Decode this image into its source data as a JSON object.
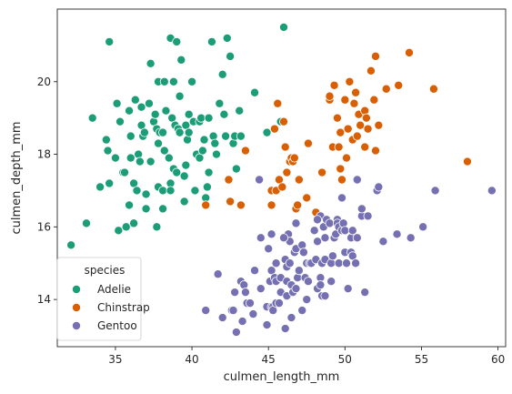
{
  "chart_data": {
    "type": "scatter",
    "xlabel": "culmen_length_mm",
    "ylabel": "culmen_depth_mm",
    "xlim": [
      31.2,
      60.5
    ],
    "ylim": [
      12.7,
      22.0
    ],
    "xticks": [
      35,
      40,
      45,
      50,
      55,
      60
    ],
    "yticks": [
      14,
      16,
      18,
      20
    ],
    "grid": false,
    "legend": {
      "title": "species",
      "placement": "lower-left",
      "entries": [
        "Adelie",
        "Chinstrap",
        "Gentoo"
      ]
    },
    "series": [
      {
        "name": "Adelie",
        "color": "#1b9e77",
        "points": [
          [
            32.1,
            15.5
          ],
          [
            33.1,
            16.1
          ],
          [
            33.5,
            19.0
          ],
          [
            34.0,
            17.1
          ],
          [
            34.4,
            18.4
          ],
          [
            34.5,
            18.1
          ],
          [
            34.6,
            21.1
          ],
          [
            34.6,
            17.2
          ],
          [
            35.0,
            17.9
          ],
          [
            35.1,
            19.4
          ],
          [
            35.2,
            15.9
          ],
          [
            35.3,
            18.9
          ],
          [
            35.5,
            17.5
          ],
          [
            35.6,
            17.5
          ],
          [
            35.7,
            16.0
          ],
          [
            35.9,
            19.2
          ],
          [
            35.9,
            16.6
          ],
          [
            36.0,
            18.5
          ],
          [
            36.0,
            17.9
          ],
          [
            36.2,
            17.2
          ],
          [
            36.2,
            16.1
          ],
          [
            36.3,
            19.5
          ],
          [
            36.4,
            17.0
          ],
          [
            36.5,
            18.0
          ],
          [
            36.6,
            17.8
          ],
          [
            36.7,
            19.3
          ],
          [
            36.7,
            18.8
          ],
          [
            36.8,
            18.5
          ],
          [
            36.9,
            18.6
          ],
          [
            37.0,
            16.9
          ],
          [
            37.0,
            16.5
          ],
          [
            37.2,
            19.4
          ],
          [
            37.3,
            20.5
          ],
          [
            37.3,
            17.8
          ],
          [
            37.5,
            18.9
          ],
          [
            37.6,
            19.1
          ],
          [
            37.7,
            18.7
          ],
          [
            37.7,
            16.0
          ],
          [
            37.8,
            20.0
          ],
          [
            37.8,
            18.3
          ],
          [
            37.8,
            17.1
          ],
          [
            37.9,
            18.6
          ],
          [
            38.1,
            18.6
          ],
          [
            38.1,
            17.0
          ],
          [
            38.1,
            16.5
          ],
          [
            38.2,
            20.0
          ],
          [
            38.2,
            18.1
          ],
          [
            38.3,
            19.2
          ],
          [
            38.5,
            17.9
          ],
          [
            38.6,
            21.2
          ],
          [
            38.6,
            17.2
          ],
          [
            38.7,
            19.0
          ],
          [
            38.8,
            20.0
          ],
          [
            38.8,
            17.6
          ],
          [
            38.9,
            18.8
          ],
          [
            39.0,
            17.5
          ],
          [
            39.0,
            21.1
          ],
          [
            39.1,
            18.7
          ],
          [
            39.2,
            19.6
          ],
          [
            39.2,
            18.6
          ],
          [
            39.3,
            20.6
          ],
          [
            39.5,
            17.4
          ],
          [
            39.5,
            16.7
          ],
          [
            39.6,
            18.8
          ],
          [
            39.6,
            17.7
          ],
          [
            39.7,
            18.4
          ],
          [
            39.8,
            19.1
          ],
          [
            40.0,
            20.0
          ],
          [
            40.1,
            18.9
          ],
          [
            40.2,
            17.0
          ],
          [
            40.3,
            18.0
          ],
          [
            40.5,
            18.9
          ],
          [
            40.5,
            17.9
          ],
          [
            40.6,
            19.0
          ],
          [
            40.7,
            18.1
          ],
          [
            40.8,
            18.4
          ],
          [
            40.9,
            16.8
          ],
          [
            41.0,
            17.1
          ],
          [
            41.1,
            19.0
          ],
          [
            41.1,
            17.5
          ],
          [
            41.3,
            21.1
          ],
          [
            41.4,
            18.5
          ],
          [
            41.5,
            18.3
          ],
          [
            41.6,
            18.0
          ],
          [
            41.8,
            19.4
          ],
          [
            42.0,
            20.2
          ],
          [
            42.1,
            19.1
          ],
          [
            42.2,
            18.5
          ],
          [
            42.3,
            21.2
          ],
          [
            42.5,
            20.7
          ],
          [
            42.7,
            18.3
          ],
          [
            42.8,
            18.5
          ],
          [
            42.9,
            17.6
          ],
          [
            43.1,
            19.2
          ],
          [
            43.2,
            18.5
          ],
          [
            44.1,
            19.7
          ],
          [
            44.9,
            18.6
          ],
          [
            45.8,
            18.9
          ],
          [
            46.0,
            21.5
          ],
          [
            39.8,
            18.6
          ],
          [
            38.6,
            17.0
          ]
        ]
      },
      {
        "name": "Chinstrap",
        "color": "#d95f02",
        "points": [
          [
            40.9,
            16.6
          ],
          [
            42.4,
            17.3
          ],
          [
            42.5,
            16.7
          ],
          [
            43.2,
            16.6
          ],
          [
            43.5,
            18.1
          ],
          [
            45.2,
            16.6
          ],
          [
            45.2,
            17.0
          ],
          [
            45.4,
            18.7
          ],
          [
            45.5,
            17.0
          ],
          [
            45.6,
            19.4
          ],
          [
            45.7,
            17.3
          ],
          [
            45.9,
            17.1
          ],
          [
            46.0,
            18.9
          ],
          [
            46.1,
            18.2
          ],
          [
            46.2,
            17.5
          ],
          [
            46.4,
            17.8
          ],
          [
            46.5,
            17.9
          ],
          [
            46.6,
            17.8
          ],
          [
            46.7,
            17.9
          ],
          [
            46.8,
            16.5
          ],
          [
            46.9,
            16.6
          ],
          [
            47.0,
            17.3
          ],
          [
            47.5,
            16.8
          ],
          [
            47.6,
            18.3
          ],
          [
            48.1,
            16.4
          ],
          [
            48.5,
            17.5
          ],
          [
            49.0,
            19.5
          ],
          [
            49.0,
            19.6
          ],
          [
            49.2,
            18.2
          ],
          [
            49.3,
            19.9
          ],
          [
            49.5,
            19.0
          ],
          [
            49.6,
            18.2
          ],
          [
            49.7,
            18.6
          ],
          [
            49.8,
            17.3
          ],
          [
            50.0,
            19.5
          ],
          [
            50.1,
            17.9
          ],
          [
            50.2,
            18.7
          ],
          [
            50.3,
            20.0
          ],
          [
            50.5,
            18.4
          ],
          [
            50.6,
            19.4
          ],
          [
            50.7,
            19.7
          ],
          [
            50.8,
            18.5
          ],
          [
            50.9,
            19.1
          ],
          [
            51.0,
            18.8
          ],
          [
            51.3,
            19.2
          ],
          [
            51.3,
            18.2
          ],
          [
            51.4,
            19.0
          ],
          [
            51.5,
            18.7
          ],
          [
            51.7,
            20.3
          ],
          [
            51.9,
            19.5
          ],
          [
            52.0,
            18.1
          ],
          [
            52.0,
            20.7
          ],
          [
            52.2,
            18.8
          ],
          [
            52.7,
            19.8
          ],
          [
            53.5,
            19.9
          ],
          [
            54.2,
            20.8
          ],
          [
            55.8,
            19.8
          ],
          [
            58.0,
            17.8
          ],
          [
            49.7,
            17.6
          ]
        ]
      },
      {
        "name": "Gentoo",
        "color": "#7570b3",
        "points": [
          [
            40.9,
            13.7
          ],
          [
            41.7,
            14.7
          ],
          [
            42.0,
            13.5
          ],
          [
            42.6,
            13.7
          ],
          [
            42.7,
            13.7
          ],
          [
            42.8,
            14.2
          ],
          [
            42.9,
            13.1
          ],
          [
            43.2,
            14.5
          ],
          [
            43.3,
            13.4
          ],
          [
            43.4,
            14.4
          ],
          [
            43.5,
            14.2
          ],
          [
            43.6,
            13.9
          ],
          [
            43.8,
            13.9
          ],
          [
            44.0,
            13.6
          ],
          [
            44.4,
            17.3
          ],
          [
            44.5,
            14.3
          ],
          [
            44.5,
            15.7
          ],
          [
            44.9,
            13.8
          ],
          [
            44.9,
            13.3
          ],
          [
            45.0,
            15.4
          ],
          [
            45.1,
            14.5
          ],
          [
            45.2,
            13.8
          ],
          [
            45.2,
            14.8
          ],
          [
            45.2,
            15.8
          ],
          [
            45.3,
            13.8
          ],
          [
            45.3,
            13.7
          ],
          [
            45.4,
            14.6
          ],
          [
            45.5,
            14.5
          ],
          [
            45.5,
            13.9
          ],
          [
            45.5,
            15.0
          ],
          [
            45.7,
            13.9
          ],
          [
            45.8,
            14.6
          ],
          [
            45.8,
            14.2
          ],
          [
            46.1,
            13.2
          ],
          [
            46.1,
            15.1
          ],
          [
            46.2,
            14.1
          ],
          [
            46.2,
            14.5
          ],
          [
            46.2,
            14.9
          ],
          [
            46.3,
            15.8
          ],
          [
            46.4,
            15.6
          ],
          [
            46.4,
            15.0
          ],
          [
            46.5,
            14.4
          ],
          [
            46.5,
            13.5
          ],
          [
            46.6,
            14.2
          ],
          [
            46.7,
            15.3
          ],
          [
            46.8,
            15.4
          ],
          [
            46.8,
            14.3
          ],
          [
            46.8,
            16.1
          ],
          [
            46.9,
            14.6
          ],
          [
            47.2,
            13.7
          ],
          [
            47.2,
            15.5
          ],
          [
            47.3,
            15.3
          ],
          [
            47.4,
            14.6
          ],
          [
            47.5,
            14.0
          ],
          [
            47.5,
            15.0
          ],
          [
            47.6,
            14.5
          ],
          [
            47.7,
            15.0
          ],
          [
            47.8,
            15.0
          ],
          [
            48.1,
            15.1
          ],
          [
            48.2,
            14.3
          ],
          [
            48.2,
            15.6
          ],
          [
            48.4,
            14.6
          ],
          [
            48.4,
            14.4
          ],
          [
            48.4,
            16.3
          ],
          [
            48.5,
            14.1
          ],
          [
            48.5,
            15.0
          ],
          [
            48.6,
            16.0
          ],
          [
            48.7,
            14.1
          ],
          [
            48.7,
            15.1
          ],
          [
            48.7,
            15.7
          ],
          [
            48.8,
            16.2
          ],
          [
            49.0,
            16.1
          ],
          [
            49.1,
            14.5
          ],
          [
            49.1,
            15.0
          ],
          [
            49.2,
            15.2
          ],
          [
            49.3,
            15.7
          ],
          [
            49.4,
            15.8
          ],
          [
            49.5,
            16.2
          ],
          [
            49.5,
            16.1
          ],
          [
            49.6,
            15.0
          ],
          [
            49.6,
            16.0
          ],
          [
            49.8,
            15.9
          ],
          [
            49.8,
            16.8
          ],
          [
            49.9,
            16.1
          ],
          [
            50.0,
            15.3
          ],
          [
            50.0,
            15.9
          ],
          [
            50.1,
            15.0
          ],
          [
            50.2,
            14.3
          ],
          [
            50.4,
            15.3
          ],
          [
            50.4,
            15.7
          ],
          [
            50.5,
            15.9
          ],
          [
            50.5,
            15.2
          ],
          [
            50.7,
            15.0
          ],
          [
            50.8,
            17.3
          ],
          [
            50.8,
            15.7
          ],
          [
            51.1,
            16.3
          ],
          [
            51.1,
            16.5
          ],
          [
            51.3,
            14.2
          ],
          [
            51.5,
            16.3
          ],
          [
            52.1,
            17.0
          ],
          [
            52.2,
            17.1
          ],
          [
            52.5,
            15.6
          ],
          [
            53.4,
            15.8
          ],
          [
            54.3,
            15.7
          ],
          [
            55.1,
            16.0
          ],
          [
            55.9,
            17.0
          ],
          [
            59.6,
            17.0
          ],
          [
            48.0,
            15.9
          ],
          [
            48.2,
            16.2
          ],
          [
            47.0,
            14.8
          ],
          [
            44.1,
            14.8
          ],
          [
            46.0,
            15.7
          ]
        ]
      }
    ]
  }
}
